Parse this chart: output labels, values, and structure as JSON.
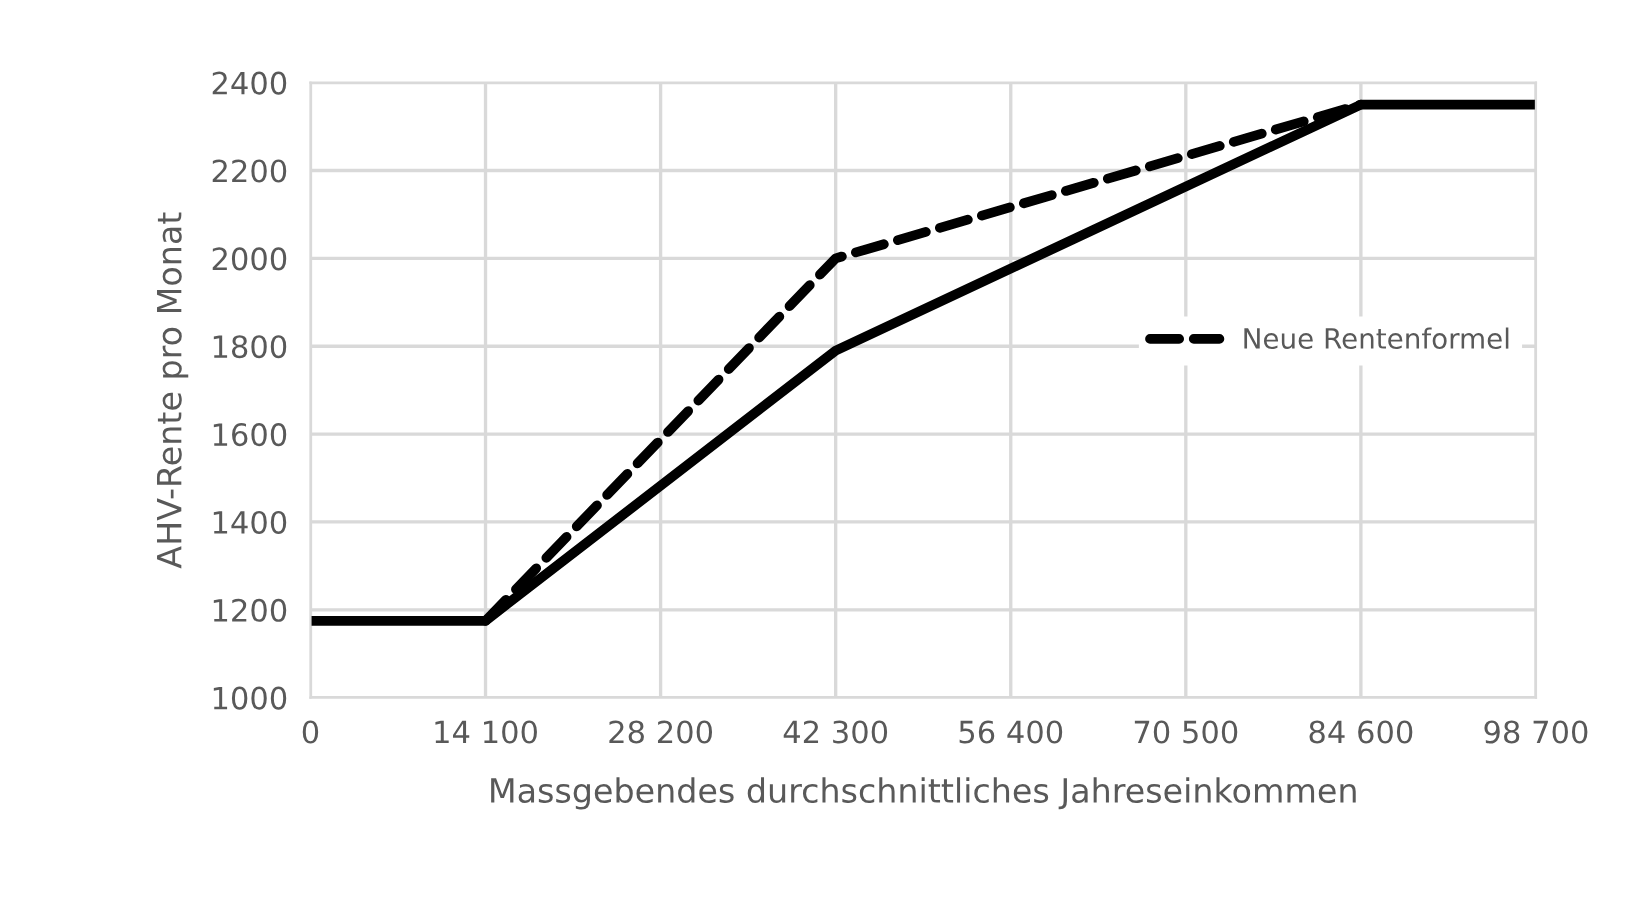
{
  "chart_data": {
    "type": "line",
    "xlabel": "Massgebendes durchschnittliches Jahreseinkommen",
    "ylabel": "AHV-Rente pro Monat",
    "series": [
      {
        "color": "#000000",
        "line_style": "solid",
        "x": [
          0,
          14100,
          42300,
          84600,
          98700
        ],
        "values": [
          1175,
          1175,
          1790,
          2350,
          2350
        ]
      },
      {
        "name": "Neue Rentenformel",
        "color": "#000000",
        "line_style": "dashed",
        "x": [
          14100,
          42300,
          84600
        ],
        "values": [
          1175,
          2000,
          2350
        ]
      }
    ],
    "xlim": [
      0,
      98700
    ],
    "xticks": [
      0,
      {
        "value": 14100,
        "label": "14 100"
      },
      {
        "value": 28200,
        "label": "28 200"
      },
      {
        "value": 42300,
        "label": "42 300"
      },
      {
        "value": 56400,
        "label": "56 400"
      },
      {
        "value": 70500,
        "label": "70 500"
      },
      {
        "value": 84600,
        "label": "84 600"
      },
      {
        "value": 98700,
        "label": "98 700"
      }
    ],
    "ylim": [
      1000,
      2400
    ],
    "yticks": [
      1000,
      1200,
      1400,
      1600,
      1800,
      2000,
      2200,
      2400
    ],
    "grid": true,
    "legend": "right",
    "marker": "none"
  }
}
